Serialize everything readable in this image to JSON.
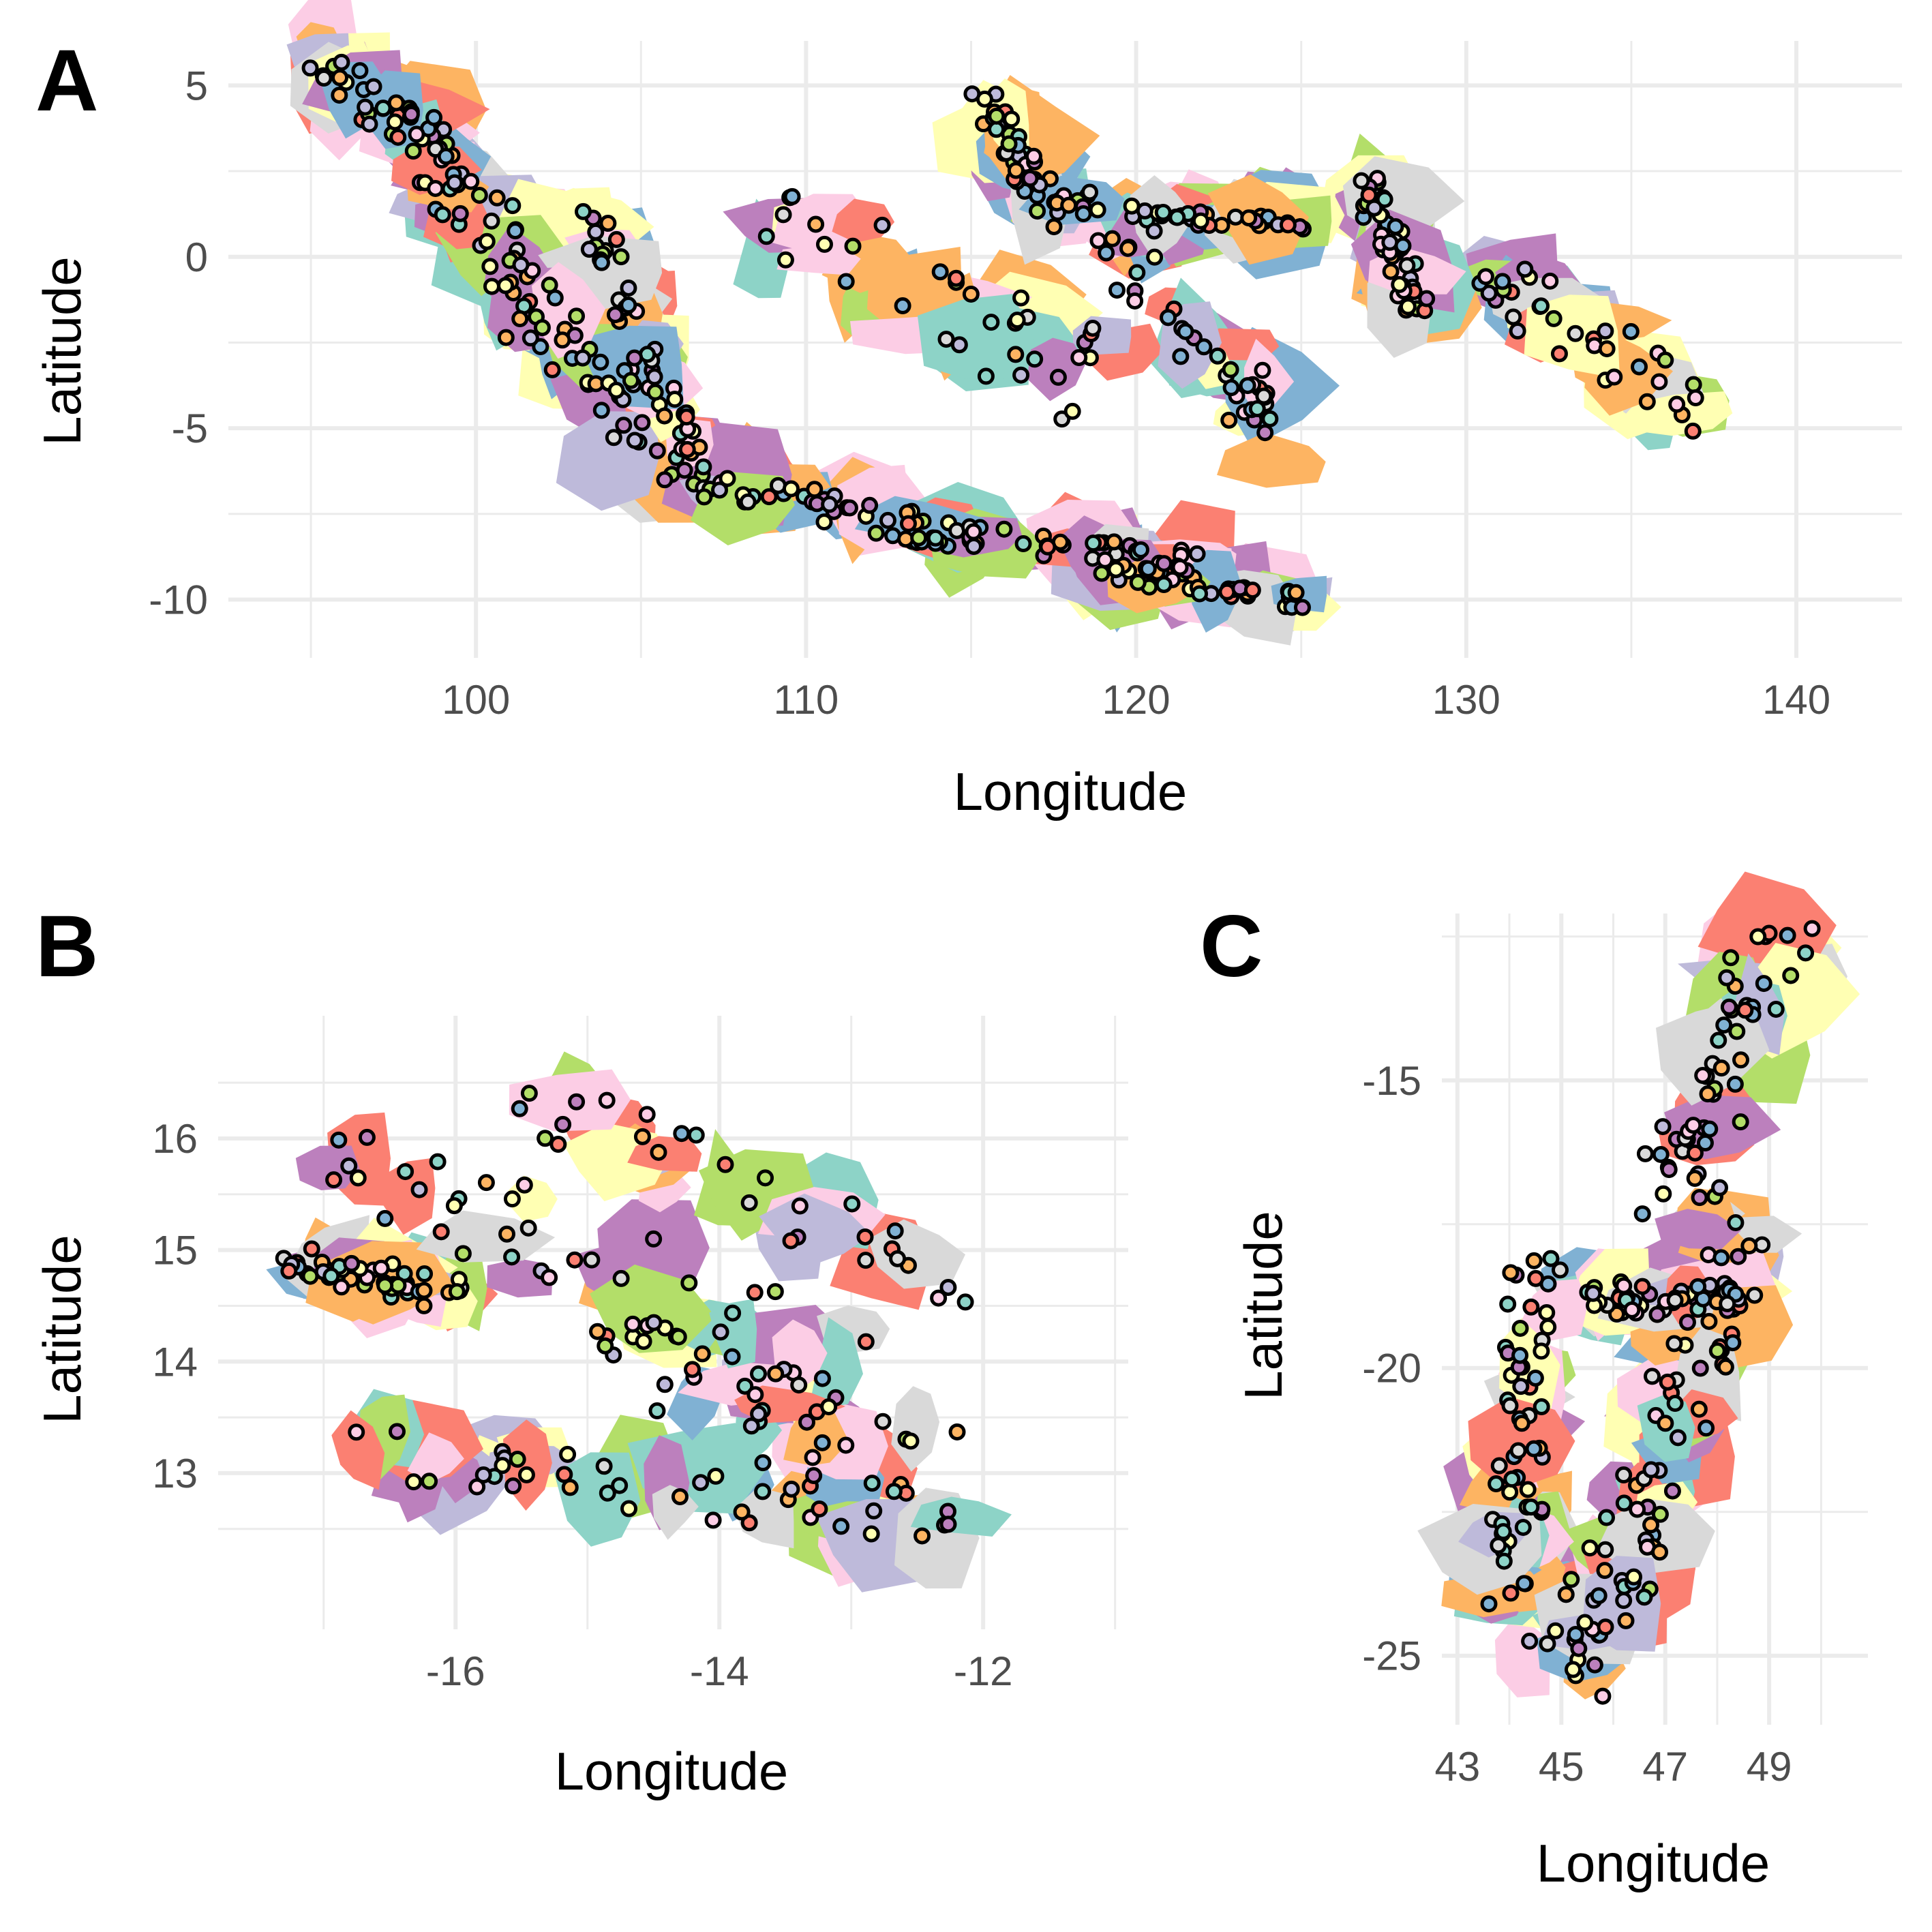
{
  "palette": [
    "#8dd3c7",
    "#ffffb3",
    "#bebada",
    "#fb8072",
    "#80b1d3",
    "#fdb462",
    "#b3de69",
    "#fccde5",
    "#d9d9d9",
    "#bc80bd"
  ],
  "chart_data": [
    {
      "panel": "A",
      "type": "scatter",
      "xlabel": "Longitude",
      "ylabel": "Latitude",
      "xlim": [
        92.5,
        143.2
      ],
      "ylim": [
        -11.7,
        6.3
      ],
      "xticks": [
        100,
        110,
        120,
        130,
        140
      ],
      "yticks": [
        5,
        0,
        -5,
        -10
      ],
      "xtick_labels": [
        "100",
        "110",
        "120",
        "130",
        "140"
      ],
      "ytick_labels": [
        "5",
        "0",
        "-5",
        "-10"
      ],
      "grid": true,
      "seed": 11,
      "n_points": 520,
      "regions": [
        {
          "x0": 95.2,
          "x1": 99.5,
          "y0": 5.9,
          "y1": 2.8,
          "w": 1.2
        },
        {
          "x0": 98.5,
          "x1": 102.5,
          "y0": 3.0,
          "y1": -1.5,
          "w": 1.8
        },
        {
          "x0": 101.0,
          "x1": 106.0,
          "y0": -1.0,
          "y1": -5.8,
          "w": 2.0
        },
        {
          "x0": 105.5,
          "x1": 114.5,
          "y0": -6.2,
          "y1": -8.2,
          "w": 0.9
        },
        {
          "x0": 114.0,
          "x1": 122.0,
          "y0": -8.0,
          "y1": -9.0,
          "w": 0.7
        },
        {
          "x0": 108.5,
          "x1": 118.5,
          "y0": 1.5,
          "y1": -3.5,
          "w": 2.5
        },
        {
          "x0": 115.5,
          "x1": 118.0,
          "y0": 4.2,
          "y1": 1.2,
          "w": 1.2
        },
        {
          "x0": 119.0,
          "x1": 124.5,
          "y0": 1.2,
          "y1": -5.5,
          "w": 1.6
        },
        {
          "x0": 120.0,
          "x1": 125.0,
          "y0": 1.2,
          "y1": 1.0,
          "w": 0.4
        },
        {
          "x0": 127.0,
          "x1": 128.5,
          "y0": 2.0,
          "y1": -1.6,
          "w": 0.9
        },
        {
          "x0": 119.0,
          "x1": 125.0,
          "y0": -9.2,
          "y1": -10.0,
          "w": 0.6
        },
        {
          "x0": 130.5,
          "x1": 137.0,
          "y0": -0.5,
          "y1": -4.5,
          "w": 1.5
        },
        {
          "x0": 103.5,
          "x1": 106.5,
          "y0": 1.0,
          "y1": -5.8,
          "w": 0.8
        }
      ]
    },
    {
      "panel": "B",
      "type": "scatter",
      "xlabel": "Longitude",
      "ylabel": "Latitude",
      "xlim": [
        -17.8,
        -10.9
      ],
      "ylim": [
        11.6,
        17.1
      ],
      "xticks": [
        -16,
        -14,
        -12
      ],
      "yticks": [
        16,
        15,
        14,
        13
      ],
      "xtick_labels": [
        "-16",
        "-14",
        "-12"
      ],
      "ytick_labels": [
        "16",
        "15",
        "14",
        "13"
      ],
      "grid": true,
      "seed": 23,
      "n_points": 190,
      "regions": [
        {
          "x0": -17.2,
          "x1": -16.0,
          "y0": 14.9,
          "y1": 14.6,
          "w": 0.3
        },
        {
          "x0": -17.0,
          "x1": -13.0,
          "y0": 15.8,
          "y1": 13.8,
          "w": 0.9
        },
        {
          "x0": -16.8,
          "x1": -12.3,
          "y0": 13.2,
          "y1": 12.6,
          "w": 0.5
        },
        {
          "x0": -15.5,
          "x1": -12.2,
          "y0": 16.4,
          "y1": 14.7,
          "w": 0.5
        },
        {
          "x0": -14.5,
          "x1": -12.5,
          "y0": 14.2,
          "y1": 13.0,
          "w": 0.8
        }
      ]
    },
    {
      "panel": "C",
      "type": "scatter",
      "xlabel": "Longitude",
      "ylabel": "Latitude",
      "xlim": [
        42.7,
        50.9
      ],
      "ylim": [
        -26.2,
        -12.1
      ],
      "xticks": [
        43,
        45,
        47,
        49
      ],
      "yticks": [
        -15,
        -20,
        -25
      ],
      "xtick_labels": [
        "43",
        "45",
        "47",
        "49"
      ],
      "ytick_labels": [
        "-15",
        "-20",
        "-25"
      ],
      "grid": true,
      "seed": 37,
      "n_points": 240,
      "regions": [
        {
          "x0": 49.3,
          "x1": 47.2,
          "y0": -12.5,
          "y1": -17.0,
          "w": 1.4
        },
        {
          "x0": 48.6,
          "x1": 46.8,
          "y0": -17.0,
          "y1": -22.0,
          "w": 1.3
        },
        {
          "x0": 46.8,
          "x1": 45.0,
          "y0": -22.0,
          "y1": -25.4,
          "w": 1.5
        },
        {
          "x0": 44.5,
          "x1": 44.0,
          "y0": -18.0,
          "y1": -24.5,
          "w": 1.0
        },
        {
          "x0": 45.5,
          "x1": 48.5,
          "y0": -18.8,
          "y1": -18.8,
          "w": 0.6
        }
      ]
    }
  ],
  "panel_labels": [
    "A",
    "B",
    "C"
  ]
}
